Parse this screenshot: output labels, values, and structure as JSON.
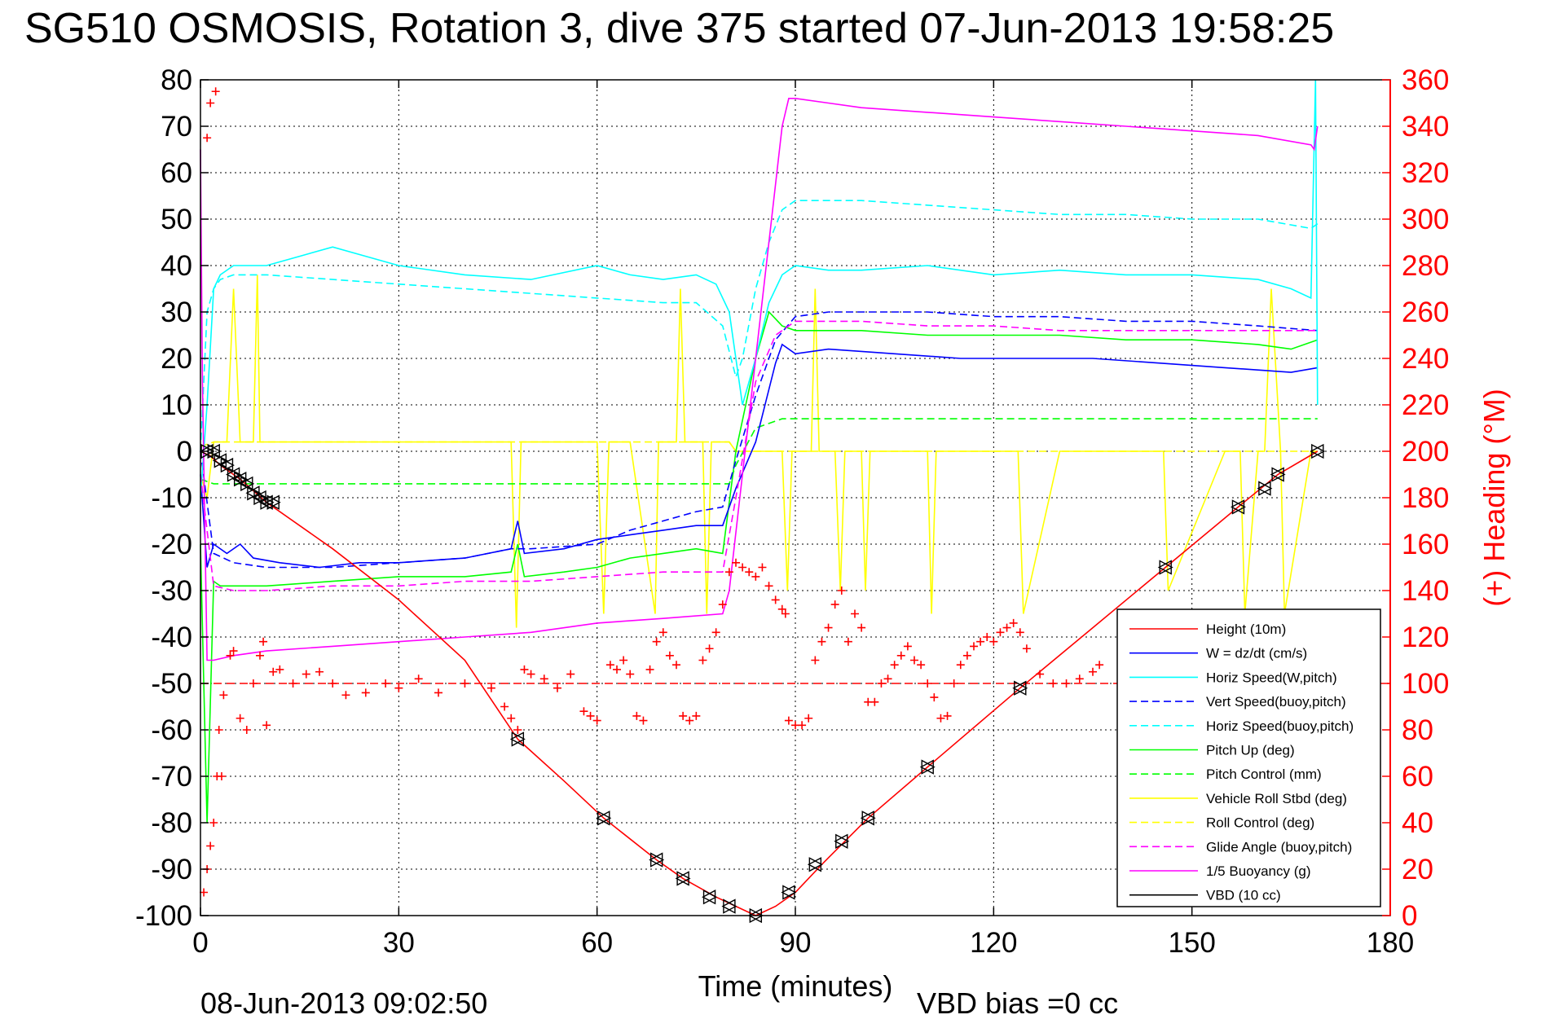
{
  "chart_data": {
    "type": "line",
    "title": "SG510 OSMOSIS, Rotation 3, dive 375 started 07-Jun-2013 19:58:25",
    "xlabel": "Time (minutes)",
    "ylabel": "",
    "y2label": "(+) Heading (°M)",
    "xlim": [
      0,
      180
    ],
    "ylim": [
      -100,
      80
    ],
    "y2lim": [
      0,
      360
    ],
    "grid": true,
    "legend_position": "bottom-right",
    "x_ticks": [
      0,
      30,
      60,
      90,
      120,
      150,
      180
    ],
    "y_ticks": [
      80,
      70,
      60,
      50,
      40,
      30,
      20,
      10,
      0,
      -10,
      -20,
      -30,
      -40,
      -50,
      -60,
      -70,
      -80,
      -90,
      -100
    ],
    "y2_ticks": [
      360,
      340,
      320,
      300,
      280,
      260,
      240,
      220,
      200,
      180,
      160,
      140,
      120,
      100,
      80,
      60,
      40,
      20,
      0
    ],
    "footer_left": "08-Jun-2013 09:02:50",
    "footer_right": "VBD bias =0 cc",
    "colors": {
      "red": "#ff0000",
      "blue": "#0000ff",
      "cyan": "#00ffff",
      "green": "#00ff00",
      "yellow": "#ffff00",
      "magenta": "#ff00ff",
      "black": "#000000"
    },
    "heading_reference": {
      "axis": "right",
      "value": 100,
      "color": "#ff0000",
      "style": "dashed"
    },
    "series": [
      {
        "name": "Height (10m)",
        "color": "#ff0000",
        "style": "solid",
        "x": [
          0,
          1.5,
          3,
          6,
          10,
          20,
          30,
          40,
          48,
          55,
          61,
          69,
          73,
          78,
          81,
          84,
          87,
          90,
          94,
          101,
          110,
          124,
          135,
          146,
          157,
          163,
          169
        ],
        "y": [
          0,
          -1,
          -3,
          -6,
          -11,
          -21,
          -32,
          -45,
          -62,
          -71,
          -79,
          -88,
          -92,
          -96,
          -98,
          -100,
          -98,
          -95,
          -89,
          -79,
          -68,
          -51,
          -38,
          -25,
          -12,
          -5,
          0
        ]
      },
      {
        "name": "W = dz/dt (cm/s)",
        "color": "#0000ff",
        "style": "solid",
        "x": [
          0,
          1,
          2,
          4,
          6,
          8,
          12,
          18,
          24,
          30,
          40,
          47,
          48,
          49,
          55,
          60,
          65,
          70,
          75,
          79,
          81,
          84,
          87,
          88,
          90,
          95,
          105,
          115,
          125,
          135,
          145,
          155,
          165,
          169
        ],
        "y": [
          -5,
          -25,
          -20,
          -22,
          -20,
          -23,
          -24,
          -25,
          -24,
          -24,
          -23,
          -21,
          -15,
          -22,
          -21,
          -19,
          -18,
          -17,
          -16,
          -16,
          -8,
          2,
          19,
          23,
          21,
          22,
          21,
          20,
          20,
          20,
          19,
          18,
          17,
          18
        ]
      },
      {
        "name": "Horiz Speed(W,pitch)",
        "color": "#00ffff",
        "style": "solid",
        "x": [
          0,
          1,
          2,
          3,
          5,
          10,
          15,
          20,
          25,
          30,
          40,
          50,
          60,
          65,
          70,
          75,
          78,
          80,
          82,
          84,
          86,
          88,
          90,
          95,
          100,
          110,
          120,
          130,
          140,
          150,
          160,
          165,
          168,
          168.7,
          169
        ],
        "y": [
          -10,
          10,
          35,
          38,
          40,
          40,
          42,
          44,
          42,
          40,
          38,
          37,
          40,
          38,
          37,
          38,
          36,
          30,
          10,
          20,
          32,
          38,
          40,
          39,
          39,
          40,
          38,
          39,
          38,
          38,
          37,
          35,
          33,
          80,
          10
        ]
      },
      {
        "name": "Vert Speed(buoy,pitch)",
        "color": "#0000ff",
        "style": "dashed",
        "x": [
          0,
          2,
          5,
          10,
          20,
          30,
          40,
          47,
          50,
          60,
          65,
          70,
          75,
          79,
          81,
          84,
          87,
          90,
          95,
          100,
          110,
          120,
          130,
          140,
          150,
          160,
          169
        ],
        "y": [
          0,
          -22,
          -24,
          -25,
          -25,
          -24,
          -23,
          -21,
          -21,
          -20,
          -17,
          -15,
          -13,
          -12,
          -2,
          12,
          24,
          29,
          30,
          30,
          30,
          29,
          29,
          28,
          28,
          27,
          26
        ]
      },
      {
        "name": "Horiz Speed(buoy,pitch)",
        "color": "#00ffff",
        "style": "dashed",
        "x": [
          0,
          1,
          2,
          3,
          5,
          10,
          20,
          30,
          40,
          50,
          60,
          70,
          75,
          79,
          81,
          82,
          84,
          86,
          88,
          90,
          95,
          100,
          110,
          120,
          130,
          140,
          150,
          160,
          168,
          169
        ],
        "y": [
          0,
          30,
          35,
          37,
          38,
          38,
          37,
          36,
          35,
          34,
          33,
          32,
          32,
          27,
          16,
          20,
          35,
          45,
          52,
          54,
          54,
          54,
          53,
          52,
          51,
          51,
          50,
          50,
          48,
          49
        ]
      },
      {
        "name": "Pitch Up (deg)",
        "color": "#00ff00",
        "style": "solid",
        "x": [
          0,
          1,
          2,
          3,
          5,
          10,
          20,
          30,
          40,
          47,
          48,
          49,
          55,
          60,
          65,
          70,
          75,
          79,
          81,
          84,
          86,
          88,
          90,
          95,
          100,
          110,
          120,
          130,
          140,
          150,
          160,
          165,
          169
        ],
        "y": [
          -20,
          -80,
          -28,
          -29,
          -29,
          -29,
          -28,
          -27,
          -27,
          -26,
          -20,
          -27,
          -26,
          -25,
          -23,
          -22,
          -21,
          -22,
          0,
          20,
          30,
          27,
          26,
          26,
          26,
          25,
          25,
          25,
          24,
          24,
          23,
          22,
          24
        ]
      },
      {
        "name": "Pitch Control (mm)",
        "color": "#00ff00",
        "style": "dashed",
        "x": [
          0,
          2,
          10,
          20,
          30,
          40,
          50,
          60,
          70,
          80,
          81,
          84,
          88,
          90,
          100,
          110,
          120,
          130,
          140,
          150,
          160,
          169
        ],
        "y": [
          -6,
          -7,
          -7,
          -7,
          -7,
          -7,
          -7,
          -7,
          -7,
          -7,
          -3,
          5,
          7,
          7,
          7,
          7,
          7,
          7,
          7,
          7,
          7,
          7
        ]
      },
      {
        "name": "Vehicle Roll Stbd (deg)",
        "color": "#ffff00",
        "style": "solid",
        "x": [
          0,
          1,
          2,
          4,
          5,
          6,
          8,
          8.6,
          9,
          10,
          20,
          30,
          40,
          47,
          47.8,
          48.5,
          55,
          60,
          61,
          61.8,
          65,
          68.8,
          69.3,
          72,
          72.6,
          73.3,
          76,
          76.6,
          77.3,
          80,
          81,
          85,
          88,
          88.8,
          89.5,
          90,
          92.4,
          93,
          93.6,
          96,
          96.8,
          97.5,
          100,
          100.6,
          101.3,
          110,
          110.6,
          111.3,
          120,
          123.7,
          124.5,
          130,
          145,
          145.7,
          146.4,
          155,
          157.3,
          158,
          160,
          161,
          162,
          163.4,
          164,
          168,
          169
        ],
        "y": [
          -5,
          -10,
          2,
          2,
          35,
          2,
          2,
          38,
          2,
          2,
          2,
          2,
          2,
          2,
          -38,
          2,
          2,
          2,
          -35,
          2,
          2,
          -35,
          2,
          2,
          35,
          2,
          2,
          -35,
          2,
          2,
          0,
          0,
          0,
          -30,
          0,
          0,
          0,
          35,
          0,
          0,
          -30,
          0,
          0,
          -30,
          0,
          0,
          -35,
          0,
          0,
          0,
          -35,
          0,
          0,
          0,
          -30,
          0,
          0,
          -35,
          0,
          0,
          35,
          0,
          -35,
          0,
          0
        ]
      },
      {
        "name": "Roll Control (deg)",
        "color": "#ffff00",
        "style": "dashed",
        "x": [
          0,
          2,
          10,
          20,
          30,
          40,
          50,
          60,
          70,
          80,
          81,
          90,
          100,
          110,
          120,
          130,
          140,
          150,
          160,
          169
        ],
        "y": [
          1,
          2,
          2,
          2,
          2,
          2,
          2,
          2,
          2,
          2,
          0,
          0,
          0,
          0,
          0,
          0,
          0,
          0,
          0,
          0
        ]
      },
      {
        "name": "Glide Angle (buoy,pitch)",
        "color": "#ff00ff",
        "style": "dashed",
        "x": [
          0,
          2,
          5,
          10,
          20,
          30,
          40,
          50,
          60,
          70,
          79,
          81,
          84,
          87,
          90,
          95,
          100,
          110,
          120,
          130,
          140,
          150,
          160,
          169
        ],
        "y": [
          -5,
          -29,
          -30,
          -30,
          -29,
          -29,
          -28,
          -28,
          -27,
          -26,
          -26,
          -10,
          15,
          25,
          28,
          28,
          28,
          27,
          27,
          26,
          26,
          26,
          26,
          26
        ]
      },
      {
        "name": "1/5 Buoyancy (g)",
        "color": "#ff00ff",
        "style": "solid",
        "x": [
          0,
          0.3,
          1,
          2,
          5,
          10,
          20,
          30,
          40,
          50,
          60,
          70,
          79,
          80,
          84,
          88,
          89,
          90,
          95,
          100,
          110,
          120,
          130,
          140,
          150,
          160,
          168,
          168.5,
          169
        ],
        "y": [
          65,
          15,
          -45,
          -45,
          -44,
          -43,
          -42,
          -41,
          -40,
          -39,
          -37,
          -36,
          -35,
          -30,
          20,
          70,
          76,
          76,
          75,
          74,
          73,
          72,
          71,
          70,
          69,
          68,
          66,
          65,
          70
        ]
      },
      {
        "name": "VBD (10 cc)",
        "color": "#000000",
        "style": "solid",
        "x": [
          0,
          0.5,
          1,
          1.5,
          2,
          10,
          20,
          30,
          40,
          50,
          60,
          70,
          79,
          80,
          82,
          84,
          86,
          88,
          90,
          100,
          110,
          120,
          130,
          140,
          150,
          160,
          169
        ],
        "y": [
          30,
          5,
          -20,
          -24,
          -25,
          -25,
          -25,
          -25,
          -25,
          -25,
          -25,
          -25,
          -25,
          -20,
          -12,
          5,
          20,
          28,
          30,
          30,
          30,
          30,
          30,
          30,
          30,
          30,
          30
        ]
      }
    ],
    "heading_series": {
      "name": "Heading",
      "axis": "right",
      "color": "#ff0000",
      "marker": "+",
      "x": [
        0.5,
        1,
        1.5,
        2,
        2.5,
        1.5,
        1,
        2.3,
        2.8,
        3.2,
        3.5,
        4.5,
        5,
        6,
        7,
        8,
        9,
        9.5,
        10,
        11,
        12,
        14,
        16,
        18,
        20,
        22,
        25,
        28,
        30,
        33,
        36,
        40,
        44,
        46,
        47,
        48,
        49,
        50,
        52,
        54,
        56,
        58,
        59,
        60,
        62,
        63,
        64,
        65,
        66,
        67,
        68,
        69,
        70,
        71,
        72,
        73,
        74,
        75,
        76,
        77,
        78,
        79,
        80,
        81,
        82,
        83,
        84,
        85,
        86,
        87,
        88,
        88.5,
        89,
        90,
        91,
        92,
        93,
        94,
        95,
        96,
        97,
        98,
        99,
        100,
        101,
        102,
        103,
        104,
        105,
        106,
        107,
        108,
        109,
        110,
        111,
        112,
        113,
        114,
        115,
        116,
        117,
        118,
        119,
        120,
        121,
        122,
        123,
        124,
        125,
        127,
        129,
        131,
        133,
        135,
        136
      ],
      "y": [
        10,
        20,
        30,
        40,
        60,
        350,
        335,
        355,
        80,
        60,
        95,
        112,
        114,
        85,
        80,
        100,
        112,
        118,
        82,
        105,
        106,
        100,
        104,
        105,
        100,
        95,
        96,
        100,
        98,
        102,
        96,
        100,
        98,
        90,
        85,
        80,
        106,
        104,
        102,
        98,
        104,
        88,
        86,
        84,
        108,
        106,
        110,
        104,
        86,
        84,
        106,
        118,
        122,
        112,
        108,
        86,
        84,
        86,
        110,
        115,
        122,
        134,
        148,
        152,
        150,
        148,
        146,
        150,
        142,
        136,
        132,
        130,
        84,
        82,
        82,
        85,
        110,
        118,
        124,
        134,
        140,
        118,
        130,
        124,
        92,
        92,
        100,
        102,
        108,
        112,
        116,
        110,
        108,
        100,
        94,
        85,
        86,
        100,
        108,
        112,
        116,
        118,
        120,
        118,
        122,
        124,
        126,
        122,
        115,
        104,
        100,
        100,
        102,
        105,
        108
      ]
    },
    "triangle_markers": {
      "color": "#000000",
      "x": [
        1,
        2,
        3,
        4,
        5,
        6,
        7,
        8,
        9,
        10,
        11,
        48,
        61,
        69,
        73,
        77,
        80,
        84,
        89,
        93,
        97,
        101,
        110,
        124,
        146,
        157,
        161,
        163,
        169
      ],
      "y": [
        0,
        0,
        -2,
        -3,
        -5,
        -6,
        -7,
        -9,
        -10,
        -11,
        -11,
        -62,
        -79,
        -88,
        -92,
        -96,
        -98,
        -100,
        -95,
        -89,
        -84,
        -79,
        -68,
        -51,
        -25,
        -12,
        -8,
        -5,
        0
      ]
    }
  }
}
